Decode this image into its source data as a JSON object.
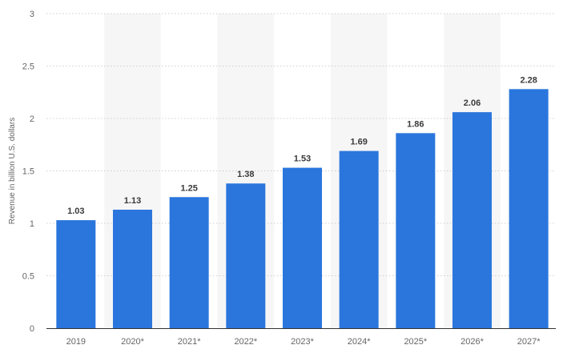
{
  "chart_data": {
    "type": "bar",
    "categories": [
      "2019",
      "2020*",
      "2021*",
      "2022*",
      "2023*",
      "2024*",
      "2025*",
      "2026*",
      "2027*"
    ],
    "values": [
      1.03,
      1.13,
      1.25,
      1.38,
      1.53,
      1.69,
      1.86,
      2.06,
      2.28
    ],
    "value_labels": [
      "1.03",
      "1.13",
      "1.25",
      "1.38",
      "1.53",
      "1.69",
      "1.86",
      "2.06",
      "2.28"
    ],
    "title": "",
    "xlabel": "",
    "ylabel": "Revenue in billion U.S. dollars",
    "ylim": [
      0,
      3
    ],
    "yticks": [
      {
        "value": 0,
        "label": "0"
      },
      {
        "value": 0.5,
        "label": "0.5"
      },
      {
        "value": 1,
        "label": "1"
      },
      {
        "value": 1.5,
        "label": "1.5"
      },
      {
        "value": 2,
        "label": "2"
      },
      {
        "value": 2.5,
        "label": "2.5"
      },
      {
        "value": 3,
        "label": "3"
      }
    ],
    "grid": true,
    "legend": "none",
    "bar_color": "#2a76dd",
    "alternate_band_color": "#f6f6f6"
  }
}
